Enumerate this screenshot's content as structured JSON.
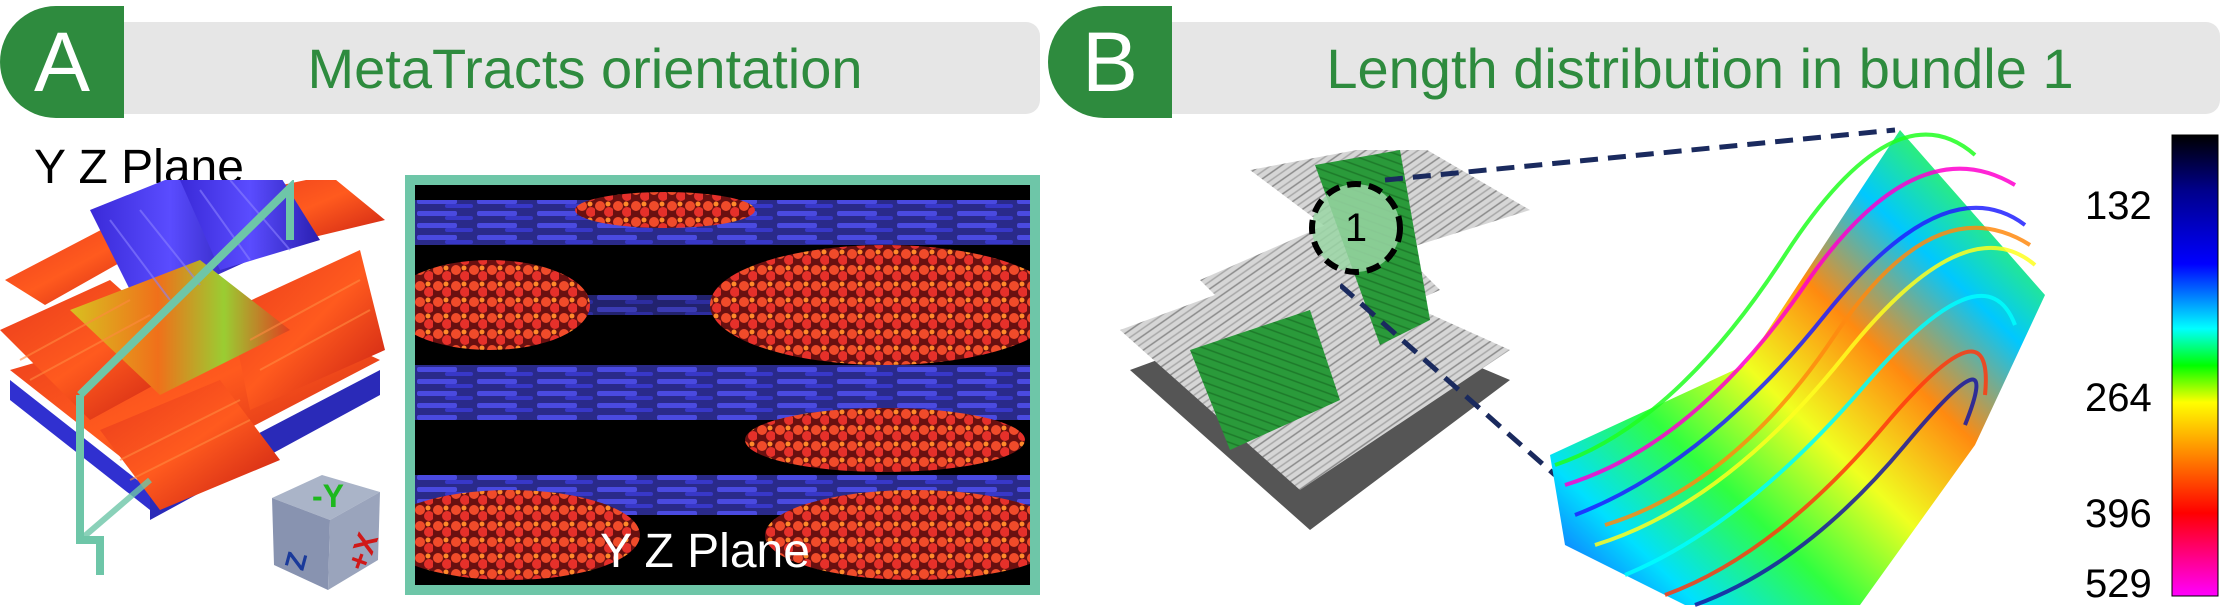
{
  "panel_a": {
    "letter": "A",
    "title": "MetaTracts orientation",
    "plane_label": "Y Z Plane",
    "inset_plane_label": "Y Z Plane",
    "cube_axes": [
      "-Y",
      "+X",
      "Z"
    ]
  },
  "panel_b": {
    "letter": "B",
    "title": "Length distribution in bundle 1",
    "bundle_marker": "1",
    "colorbar": {
      "labels": [
        "132",
        "264",
        "396",
        "529"
      ],
      "colors": [
        "#000000",
        "#00008b",
        "#0000ff",
        "#00ffff",
        "#00ff00",
        "#ffff00",
        "#ff8000",
        "#ff0000",
        "#ff00ff"
      ]
    }
  },
  "colors": {
    "accent_green": "#2e8b3e",
    "banner_gray": "#e6e6e6",
    "frame_teal": "#6ec6a8",
    "dashed_navy": "#1a2a5e"
  }
}
